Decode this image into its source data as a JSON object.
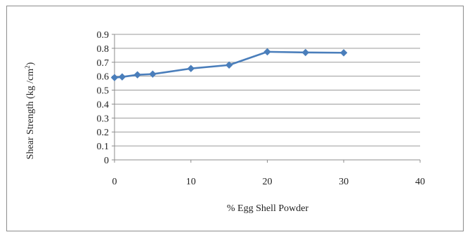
{
  "chart_data": {
    "type": "line",
    "title": "",
    "xlabel": "% Egg Shell Powder",
    "ylabel_main": "Shear Strength (kg /cm",
    "ylabel_sup": "2",
    "ylabel_end": ")",
    "xlim": [
      0,
      40
    ],
    "ylim": [
      0,
      0.9
    ],
    "xticks": [
      "0",
      "10",
      "20",
      "30",
      "40"
    ],
    "yticks": [
      "0",
      "0.1",
      "0.2",
      "0.3",
      "0.4",
      "0.5",
      "0.6",
      "0.7",
      "0.8",
      "0.9"
    ],
    "grid": "horizontal",
    "legend": "none",
    "series": [
      {
        "x": [
          0,
          1,
          3,
          5,
          10,
          15,
          20,
          25,
          30
        ],
        "y": [
          0.59,
          0.595,
          0.61,
          0.615,
          0.655,
          0.68,
          0.775,
          0.77,
          0.768
        ],
        "color": "#4a7ebb"
      }
    ]
  }
}
